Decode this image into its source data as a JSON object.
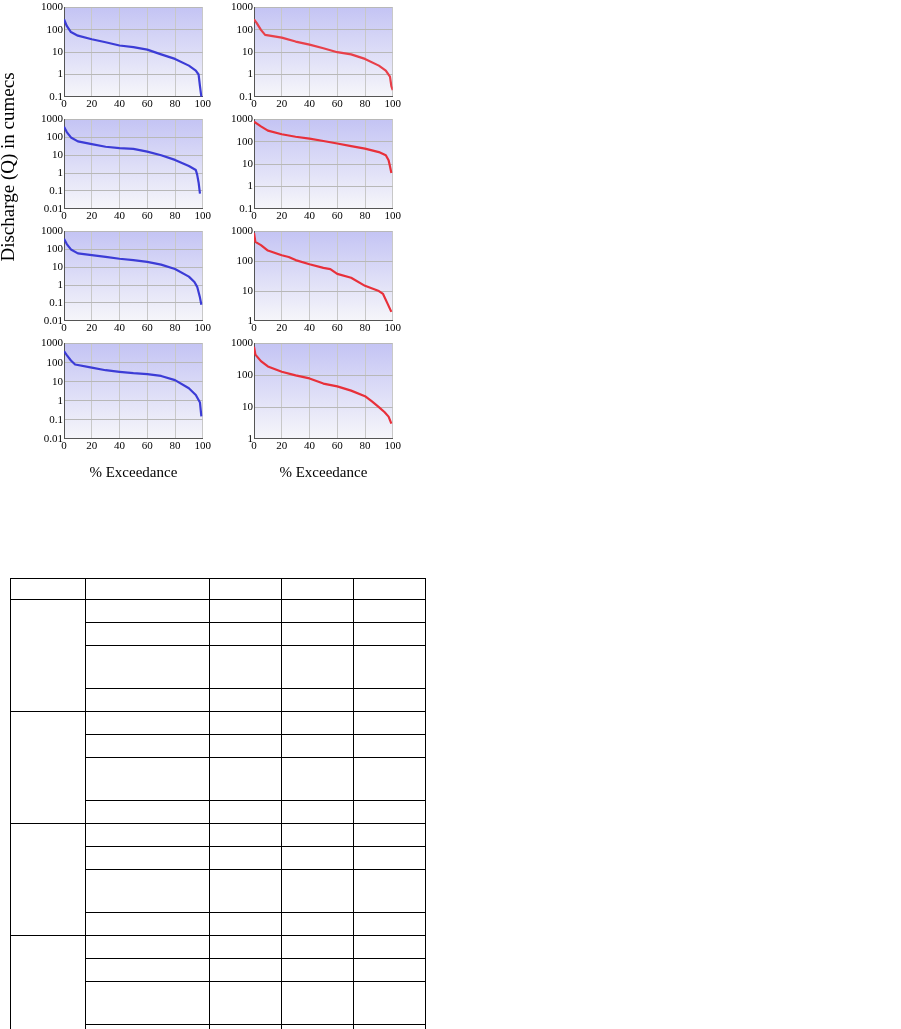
{
  "chart_data": [
    {
      "type": "line",
      "x": [
        0,
        2,
        5,
        10,
        20,
        30,
        40,
        50,
        60,
        70,
        80,
        90,
        95,
        97,
        98,
        99
      ],
      "series": [
        {
          "color": "#3c3cd6",
          "values": [
            300,
            150,
            80,
            55,
            38,
            28,
            20,
            17,
            13,
            8,
            5,
            2.5,
            1.5,
            1,
            0.3,
            0.1
          ]
        }
      ],
      "xlim": [
        0,
        100
      ],
      "xticks": [
        0,
        20,
        40,
        60,
        80,
        100
      ],
      "ylim": [
        0.1,
        1000
      ],
      "yticks": [
        0.1,
        1,
        10,
        100,
        1000
      ],
      "log": "y",
      "grid": true,
      "marker": "none"
    },
    {
      "type": "line",
      "x": [
        0,
        2,
        5,
        8,
        20,
        30,
        40,
        50,
        60,
        70,
        80,
        90,
        95,
        98,
        99,
        100
      ],
      "series": [
        {
          "color": "#e8404a",
          "values": [
            300,
            200,
            100,
            60,
            45,
            30,
            22,
            15,
            10,
            8,
            5,
            2.5,
            1.5,
            0.8,
            0.3,
            0.2
          ]
        }
      ],
      "xlim": [
        0,
        100
      ],
      "xticks": [
        0,
        20,
        40,
        60,
        80,
        100
      ],
      "ylim": [
        0.1,
        1000
      ],
      "yticks": [
        0.1,
        1,
        10,
        100,
        1000
      ],
      "log": "y",
      "grid": true,
      "marker": "none"
    },
    {
      "type": "line",
      "ylabel": "Discharge (Q) in cumecs",
      "x": [
        0,
        2,
        5,
        10,
        20,
        30,
        40,
        50,
        60,
        70,
        80,
        90,
        95,
        96,
        97,
        98
      ],
      "series": [
        {
          "color": "#3c3cd6",
          "values": [
            400,
            200,
            100,
            60,
            42,
            30,
            25,
            23,
            16,
            10,
            5.5,
            2.5,
            1.5,
            0.8,
            0.3,
            0.07
          ]
        }
      ],
      "xlim": [
        0,
        100
      ],
      "xticks": [
        0,
        20,
        40,
        60,
        80,
        100
      ],
      "ylim": [
        0.01,
        1000
      ],
      "yticks": [
        0.01,
        0.1,
        1,
        10,
        100,
        1000
      ],
      "log": "y",
      "grid": true,
      "marker": "none"
    },
    {
      "type": "line",
      "x": [
        0,
        5,
        10,
        20,
        30,
        40,
        50,
        60,
        70,
        80,
        90,
        95,
        97,
        98,
        99
      ],
      "series": [
        {
          "color": "#e8303a",
          "values": [
            800,
            500,
            320,
            220,
            170,
            140,
            110,
            85,
            65,
            50,
            35,
            25,
            15,
            8,
            4
          ]
        }
      ],
      "xlim": [
        0,
        100
      ],
      "xticks": [
        0,
        20,
        40,
        60,
        80,
        100
      ],
      "ylim": [
        0.1,
        1000
      ],
      "yticks": [
        0.1,
        1,
        10,
        100,
        1000
      ],
      "log": "y",
      "grid": true,
      "marker": "none"
    },
    {
      "type": "line",
      "x": [
        0,
        2,
        5,
        10,
        20,
        30,
        40,
        50,
        60,
        70,
        80,
        90,
        94,
        96,
        98,
        99
      ],
      "series": [
        {
          "color": "#3c3cd6",
          "values": [
            400,
            200,
            100,
            60,
            48,
            38,
            30,
            25,
            20,
            14,
            8,
            3,
            1.5,
            0.8,
            0.2,
            0.08
          ]
        }
      ],
      "xlim": [
        0,
        100
      ],
      "xticks": [
        0,
        20,
        40,
        60,
        80,
        100
      ],
      "ylim": [
        0.01,
        1000
      ],
      "yticks": [
        0.01,
        0.1,
        1,
        10,
        100,
        1000
      ],
      "log": "y",
      "grid": true,
      "marker": "none"
    },
    {
      "type": "line",
      "x": [
        0,
        1,
        5,
        10,
        20,
        25,
        30,
        40,
        50,
        55,
        60,
        70,
        80,
        90,
        93,
        96,
        99
      ],
      "series": [
        {
          "color": "#e8303a",
          "values": [
            900,
            450,
            350,
            230,
            160,
            140,
            110,
            80,
            60,
            55,
            38,
            28,
            15,
            10,
            8,
            4,
            2
          ]
        }
      ],
      "xlim": [
        0,
        100
      ],
      "xticks": [
        0,
        20,
        40,
        60,
        80,
        100
      ],
      "ylim": [
        1,
        1000
      ],
      "yticks": [
        1,
        10,
        100,
        1000
      ],
      "log": "y",
      "grid": true,
      "marker": "none"
    },
    {
      "type": "line",
      "xlabel": "% Exceedance",
      "x": [
        0,
        2,
        5,
        8,
        20,
        30,
        40,
        50,
        60,
        70,
        80,
        90,
        95,
        98,
        99
      ],
      "series": [
        {
          "color": "#3c3cd6",
          "values": [
            400,
            250,
            130,
            80,
            55,
            40,
            33,
            28,
            25,
            20,
            12,
            4.5,
            2,
            0.8,
            0.15
          ]
        }
      ],
      "xlim": [
        0,
        100
      ],
      "xticks": [
        0,
        20,
        40,
        60,
        80,
        100
      ],
      "ylim": [
        0.01,
        1000
      ],
      "yticks": [
        0.01,
        0.1,
        1,
        10,
        100,
        1000
      ],
      "log": "y",
      "grid": true,
      "marker": "none"
    },
    {
      "type": "line",
      "xlabel": "% Exceedance",
      "x": [
        0,
        1,
        5,
        10,
        20,
        30,
        40,
        50,
        60,
        70,
        80,
        85,
        90,
        94,
        97,
        99
      ],
      "series": [
        {
          "color": "#e8303a",
          "values": [
            800,
            450,
            280,
            190,
            130,
            100,
            80,
            55,
            45,
            33,
            22,
            15,
            10,
            7,
            5,
            3
          ]
        }
      ],
      "xlim": [
        0,
        100
      ],
      "xticks": [
        0,
        20,
        40,
        60,
        80,
        100
      ],
      "ylim": [
        1,
        1000
      ],
      "yticks": [
        1,
        10,
        100,
        1000
      ],
      "log": "y",
      "grid": true,
      "marker": "none"
    }
  ]
}
